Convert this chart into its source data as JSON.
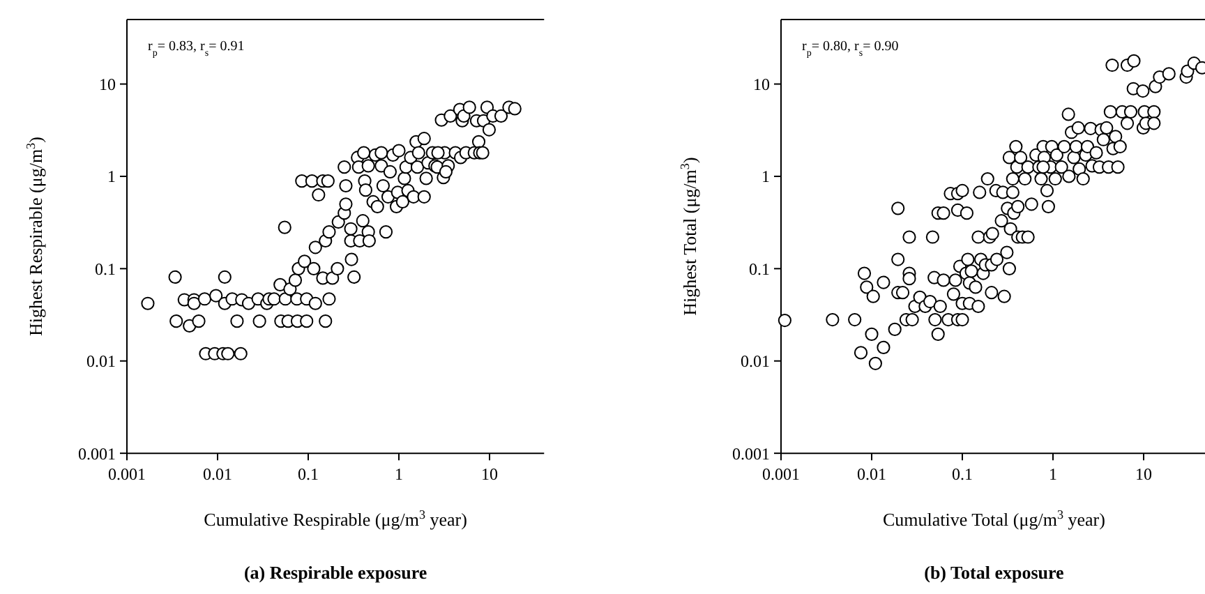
{
  "chart_data": [
    {
      "type": "scatter",
      "title": "(a) Respirable exposure",
      "xlabel": "Cumulative  Respirable (μg/m$^{3}$ year)",
      "ylabel": "Highest Respirable (μg/m$^{3}$)",
      "annotations": [
        "r$_{p}$= 0.83, r$_{s}$= 0.91"
      ],
      "log": "xy",
      "xlim": [
        0.001,
        40
      ],
      "ylim": [
        0.001,
        50
      ],
      "xticks": [
        0.001,
        0.01,
        0.1,
        1,
        10
      ],
      "yticks": [
        0.001,
        0.01,
        0.1,
        1,
        10
      ],
      "marker": "circle",
      "series": [
        {
          "color": "#000000",
          "x": [
            0.0017,
            0.0034,
            0.0035,
            0.0043,
            0.0049,
            0.0055,
            0.0055,
            0.0062,
            0.0072,
            0.0074,
            0.0093,
            0.0096,
            0.0115,
            0.012,
            0.012,
            0.013,
            0.0145,
            0.018,
            0.0164,
            0.0185,
            0.022,
            0.028,
            0.029,
            0.035,
            0.037,
            0.042,
            0.049,
            0.05,
            0.056,
            0.055,
            0.06,
            0.063,
            0.072,
            0.075,
            0.076,
            0.078,
            0.085,
            0.091,
            0.096,
            0.096,
            0.11,
            0.115,
            0.12,
            0.13,
            0.12,
            0.145,
            0.145,
            0.155,
            0.155,
            0.165,
            0.17,
            0.185,
            0.21,
            0.17,
            0.215,
            0.25,
            0.26,
            0.25,
            0.26,
            0.295,
            0.295,
            0.3,
            0.32,
            0.35,
            0.36,
            0.37,
            0.4,
            0.41,
            0.42,
            0.43,
            0.46,
            0.47,
            0.46,
            0.52,
            0.55,
            0.58,
            0.64,
            0.64,
            0.67,
            0.72,
            0.76,
            0.8,
            0.86,
            0.94,
            0.97,
            1.0,
            1.1,
            1.15,
            1.2,
            1.26,
            1.35,
            1.45,
            1.55,
            1.6,
            1.65,
            1.9,
            1.9,
            2.0,
            2.1,
            2.35,
            2.5,
            2.65,
            2.95,
            3.1,
            3.2,
            3.5,
            3.7,
            4.2,
            4.7,
            4.8,
            5.0,
            5.2,
            5.5,
            6.0,
            6.8,
            7.2,
            7.6,
            7.8,
            8.4,
            8.6,
            9.4,
            9.9,
            10.9,
            13.4,
            16.4,
            19,
            2.7,
            3.3
          ],
          "values": [
            0.042,
            0.081,
            0.027,
            0.046,
            0.024,
            0.046,
            0.042,
            0.027,
            0.047,
            0.012,
            0.012,
            0.051,
            0.012,
            0.081,
            0.042,
            0.012,
            0.047,
            0.012,
            0.027,
            0.046,
            0.042,
            0.047,
            0.027,
            0.042,
            0.047,
            0.047,
            0.067,
            0.027,
            0.047,
            0.28,
            0.027,
            0.06,
            0.075,
            0.047,
            0.027,
            0.1,
            0.89,
            0.12,
            0.047,
            0.027,
            0.89,
            0.1,
            0.17,
            0.63,
            0.042,
            0.89,
            0.079,
            0.2,
            0.027,
            0.89,
            0.047,
            0.079,
            0.1,
            0.25,
            0.32,
            0.4,
            0.5,
            1.26,
            0.79,
            0.27,
            0.2,
            0.126,
            0.081,
            1.6,
            1.26,
            0.2,
            0.33,
            1.8,
            0.89,
            0.71,
            0.25,
            0.2,
            1.3,
            0.53,
            1.7,
            0.47,
            1.3,
            1.8,
            0.79,
            0.25,
            0.6,
            1.12,
            1.7,
            0.47,
            0.67,
            1.9,
            0.53,
            0.95,
            1.26,
            0.7,
            1.6,
            0.6,
            2.37,
            1.26,
            1.8,
            2.57,
            0.6,
            0.95,
            1.4,
            1.8,
            1.3,
            1.26,
            4.07,
            0.97,
            1.8,
            1.3,
            4.5,
            1.8,
            5.3,
            1.6,
            4,
            4.5,
            1.8,
            5.6,
            1.8,
            4,
            2.37,
            1.8,
            1.8,
            4,
            5.6,
            3.2,
            4.5,
            4.5,
            5.6,
            5.4,
            1.8,
            1.12
          ]
        }
      ]
    },
    {
      "type": "scatter",
      "title": "(b) Total exposure",
      "xlabel": "Cumulative Total (μg/m$^{3}$ year)",
      "ylabel": "Highest Total (μg/m$^{3}$)",
      "annotations": [
        "r$_{p}$= 0.80, r$_{s}$= 0.90"
      ],
      "log": "xy",
      "xlim": [
        0.001,
        50
      ],
      "ylim": [
        0.001,
        50
      ],
      "xticks": [
        0.001,
        0.01,
        0.1,
        1,
        10
      ],
      "yticks": [
        0.001,
        0.01,
        0.1,
        1,
        10
      ],
      "marker": "circle",
      "series": [
        {
          "color": "#000000",
          "x": [
            0.0011,
            0.0037,
            0.0065,
            0.0083,
            0.0088,
            0.0104,
            0.0076,
            0.01,
            0.011,
            0.0135,
            0.0135,
            0.018,
            0.0195,
            0.0195,
            0.0195,
            0.022,
            0.024,
            0.026,
            0.026,
            0.026,
            0.028,
            0.03,
            0.034,
            0.039,
            0.044,
            0.047,
            0.049,
            0.05,
            0.054,
            0.054,
            0.057,
            0.062,
            0.062,
            0.07,
            0.074,
            0.08,
            0.084,
            0.089,
            0.089,
            0.089,
            0.094,
            0.1,
            0.1,
            0.1,
            0.11,
            0.112,
            0.115,
            0.12,
            0.12,
            0.126,
            0.14,
            0.15,
            0.155,
            0.15,
            0.16,
            0.17,
            0.18,
            0.19,
            0.2,
            0.21,
            0.215,
            0.21,
            0.235,
            0.24,
            0.27,
            0.29,
            0.28,
            0.31,
            0.315,
            0.33,
            0.34,
            0.36,
            0.37,
            0.39,
            0.41,
            0.41,
            0.33,
            0.36,
            0.4,
            0.44,
            0.46,
            0.49,
            0.53,
            0.53,
            0.58,
            0.65,
            0.7,
            0.74,
            0.78,
            0.8,
            0.86,
            0.89,
            0.94,
            0.97,
            1.06,
            1.1,
            1.24,
            1.33,
            1.48,
            1.5,
            1.6,
            1.7,
            1.8,
            1.9,
            1.95,
            2.15,
            2.3,
            2.4,
            2.6,
            2.7,
            3.0,
            3.25,
            3.4,
            3.6,
            3.9,
            4.1,
            4.3,
            4.5,
            4.6,
            4.9,
            5.2,
            5.5,
            5.8,
            6.6,
            6.6,
            7.2,
            7.8,
            7.7,
            9.8,
            9.9,
            10.2,
            10.6,
            13.5,
            13,
            13,
            15,
            19,
            29.5,
            30.5,
            36,
            44,
            0.78
          ],
          "values": [
            0.0275,
            0.028,
            0.028,
            0.089,
            0.063,
            0.05,
            0.0123,
            0.0195,
            0.0094,
            0.071,
            0.014,
            0.022,
            0.45,
            0.126,
            0.055,
            0.055,
            0.028,
            0.089,
            0.22,
            0.078,
            0.028,
            0.039,
            0.049,
            0.039,
            0.044,
            0.22,
            0.08,
            0.028,
            0.0195,
            0.4,
            0.039,
            0.4,
            0.075,
            0.028,
            0.65,
            0.053,
            0.075,
            0.43,
            0.65,
            0.028,
            0.106,
            0.042,
            0.028,
            0.7,
            0.089,
            0.4,
            0.126,
            0.042,
            0.07,
            0.094,
            0.063,
            0.22,
            0.67,
            0.039,
            0.126,
            0.089,
            0.11,
            0.94,
            0.22,
            0.11,
            0.24,
            0.055,
            0.7,
            0.126,
            0.33,
            0.05,
            0.67,
            0.15,
            0.45,
            0.1,
            0.27,
            0.67,
            0.4,
            2.1,
            0.22,
            0.47,
            1.6,
            0.94,
            1.26,
            1.6,
            0.22,
            0.94,
            0.22,
            1.26,
            0.5,
            1.7,
            1.26,
            0.94,
            2.1,
            1.6,
            0.7,
            0.47,
            1.26,
            2.1,
            0.94,
            1.7,
            1.26,
            2.1,
            4.7,
            1.0,
            3.0,
            1.6,
            2.1,
            3.35,
            1.2,
            0.94,
            1.7,
            2.1,
            3.3,
            1.3,
            1.8,
            1.26,
            3.2,
            2.5,
            3.35,
            1.26,
            5.0,
            16,
            2.0,
            2.7,
            1.26,
            2.1,
            5.0,
            16,
            3.76,
            5.0,
            17.8,
            8.9,
            8.4,
            3.35,
            5.0,
            3.76,
            9.4,
            5.0,
            3.76,
            11.9,
            12.9,
            11.9,
            13.8,
            16.8,
            15,
            1.26
          ]
        }
      ]
    }
  ]
}
